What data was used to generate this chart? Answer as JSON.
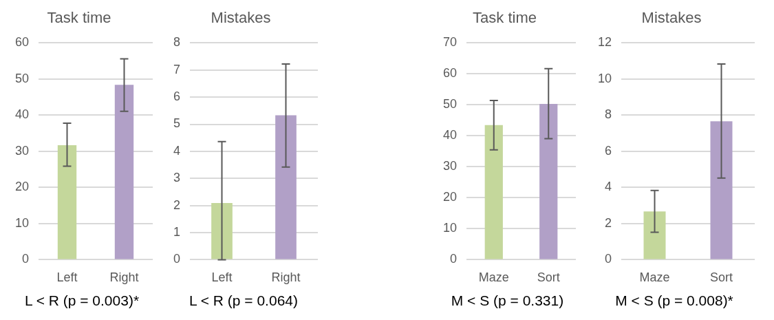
{
  "chart_data": [
    {
      "type": "bar",
      "title": "Task time",
      "categories": [
        "Left",
        "Right"
      ],
      "values": [
        31.7,
        48.4
      ],
      "colors": [
        "#c4d79b",
        "#b1a0c7"
      ],
      "errors": [
        [
          25.9,
          37.8
        ],
        [
          41.1,
          55.6
        ]
      ],
      "ylim": [
        0,
        60
      ],
      "yticks": [
        0,
        10,
        20,
        30,
        40,
        50,
        60
      ],
      "grid": "y",
      "legend": false,
      "annotations": [
        "L < R (p = 0.003)*"
      ]
    },
    {
      "type": "bar",
      "title": "Mistakes",
      "categories": [
        "Left",
        "Right"
      ],
      "values": [
        2.09,
        5.33
      ],
      "colors": [
        "#c4d79b",
        "#b1a0c7"
      ],
      "errors": [
        [
          0,
          4.36
        ],
        [
          3.42,
          7.22
        ]
      ],
      "ylim": [
        0,
        8
      ],
      "yticks": [
        0,
        1,
        2,
        3,
        4,
        5,
        6,
        7,
        8
      ],
      "grid": "y",
      "legend": false,
      "annotations": [
        "L < R (p = 0.064)"
      ]
    },
    {
      "type": "bar",
      "title": "Task time",
      "categories": [
        "Maze",
        "Sort"
      ],
      "values": [
        43.5,
        50.3
      ],
      "colors": [
        "#c4d79b",
        "#b1a0c7"
      ],
      "errors": [
        [
          35.5,
          51.4
        ],
        [
          39.1,
          61.7
        ]
      ],
      "ylim": [
        0,
        70
      ],
      "yticks": [
        0,
        10,
        20,
        30,
        40,
        50,
        60,
        70
      ],
      "grid": "y",
      "legend": false,
      "annotations": [
        "M < S (p = 0.331)"
      ]
    },
    {
      "type": "bar",
      "title": "Mistakes",
      "categories": [
        "Maze",
        "Sort"
      ],
      "values": [
        2.67,
        7.66
      ],
      "colors": [
        "#c4d79b",
        "#b1a0c7"
      ],
      "errors": [
        [
          1.52,
          3.83
        ],
        [
          4.52,
          10.83
        ]
      ],
      "ylim": [
        0,
        12
      ],
      "yticks": [
        0,
        2,
        4,
        6,
        8,
        10,
        12
      ],
      "grid": "y",
      "legend": false,
      "annotations": [
        "M < S (p = 0.008)*"
      ]
    }
  ]
}
